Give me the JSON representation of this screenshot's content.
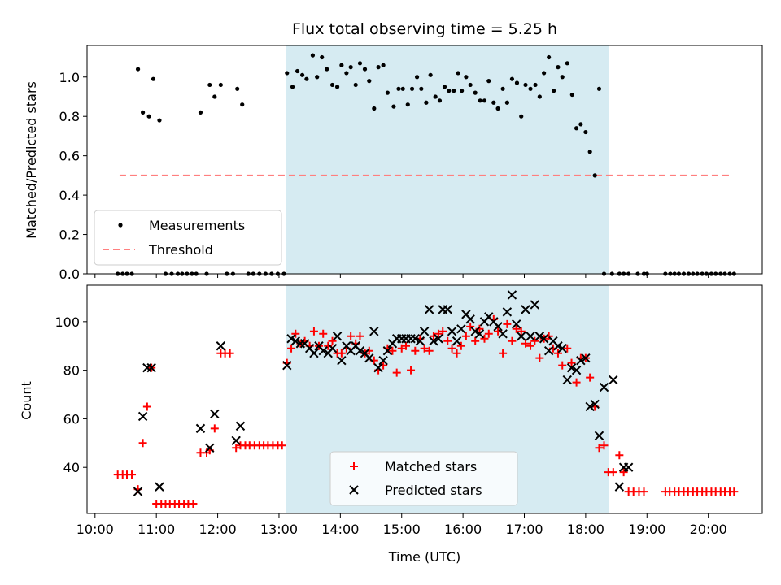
{
  "figure": {
    "title": "Flux total observing time = 5.25 h",
    "xlabel": "Time (UTC)"
  },
  "colors": {
    "shade": "#add8e6",
    "threshold": "#ff7f7f",
    "measurement": "#000000",
    "matched": "#ff0000",
    "predicted": "#000000"
  },
  "chart_data": [
    {
      "type": "scatter",
      "title": "Flux total observing time = 5.25 h",
      "xlabel": "",
      "ylabel": "Matched/Predicted stars",
      "x_unit": "hours UTC",
      "xlim": [
        9.87,
        20.88
      ],
      "ylim": [
        0.0,
        1.16
      ],
      "xticks": [
        10,
        11,
        12,
        13,
        14,
        15,
        16,
        17,
        18,
        19,
        20
      ],
      "yticks": [
        0.0,
        0.2,
        0.4,
        0.6,
        0.8,
        1.0
      ],
      "ytick_labels": [
        "0.0",
        "0.2",
        "0.4",
        "0.6",
        "0.8",
        "1.0"
      ],
      "shaded_span": [
        13.12,
        18.38
      ],
      "threshold": {
        "name": "Threshold",
        "y": 0.5,
        "x_range": [
          10.4,
          20.4
        ]
      },
      "legend": {
        "location": "lower left",
        "entries": [
          "Measurements",
          "Threshold"
        ]
      },
      "series": [
        {
          "name": "Measurements",
          "x": [
            10.37,
            10.45,
            10.52,
            10.6,
            10.7,
            10.78,
            10.88,
            10.95,
            11.05,
            11.15,
            11.25,
            11.35,
            11.42,
            11.5,
            11.58,
            11.65,
            11.72,
            11.82,
            11.87,
            11.95,
            12.05,
            12.15,
            12.25,
            12.32,
            12.4,
            12.5,
            12.58,
            12.68,
            12.78,
            12.88,
            12.98,
            13.08,
            13.13,
            13.22,
            13.3,
            13.38,
            13.45,
            13.55,
            13.62,
            13.7,
            13.78,
            13.87,
            13.95,
            14.02,
            14.1,
            14.17,
            14.25,
            14.32,
            14.4,
            14.47,
            14.55,
            14.62,
            14.7,
            14.77,
            14.87,
            14.95,
            15.02,
            15.1,
            15.17,
            15.25,
            15.32,
            15.4,
            15.47,
            15.55,
            15.62,
            15.7,
            15.77,
            15.85,
            15.92,
            15.98,
            16.05,
            16.12,
            16.2,
            16.28,
            16.35,
            16.42,
            16.5,
            16.57,
            16.65,
            16.72,
            16.8,
            16.88,
            16.95,
            17.02,
            17.1,
            17.18,
            17.25,
            17.32,
            17.4,
            17.48,
            17.55,
            17.62,
            17.7,
            17.78,
            17.85,
            17.92,
            18.0,
            18.07,
            18.15,
            18.22,
            18.3,
            18.43,
            18.55,
            18.62,
            18.7,
            18.85,
            18.95,
            19.0,
            19.3,
            19.38,
            19.45,
            19.52,
            19.6,
            19.68,
            19.75,
            19.82,
            19.9,
            19.97,
            20.05,
            20.12,
            20.2,
            20.27,
            20.35,
            20.42
          ],
          "y": [
            0,
            0,
            0,
            0,
            1.04,
            0.82,
            0.8,
            0.99,
            0.78,
            0,
            0,
            0,
            0,
            0,
            0,
            0,
            0.82,
            0,
            0.96,
            0.9,
            0.96,
            0,
            0,
            0.94,
            0.86,
            0,
            0,
            0,
            0,
            0,
            0,
            0,
            1.02,
            0.95,
            1.03,
            1.01,
            0.99,
            1.11,
            1.0,
            1.1,
            1.04,
            0.96,
            0.95,
            1.06,
            1.02,
            1.05,
            0.96,
            1.07,
            1.04,
            0.98,
            0.84,
            1.05,
            1.06,
            0.92,
            0.85,
            0.94,
            0.94,
            0.86,
            0.94,
            1.0,
            0.94,
            0.87,
            1.01,
            0.9,
            0.88,
            0.95,
            0.93,
            0.93,
            1.02,
            0.93,
            1.0,
            0.96,
            0.92,
            0.88,
            0.88,
            0.98,
            0.87,
            0.84,
            0.94,
            0.87,
            0.99,
            0.97,
            0.8,
            0.96,
            0.94,
            0.96,
            0.9,
            1.02,
            1.1,
            0.93,
            1.05,
            1.0,
            1.07,
            0.91,
            0.74,
            0.76,
            0.72,
            0.62,
            0.5,
            0.94,
            0,
            0,
            0,
            0,
            0,
            0,
            0,
            0,
            0,
            0,
            0,
            0,
            0,
            0,
            0,
            0,
            0,
            0,
            0,
            0,
            0,
            0,
            0,
            0
          ]
        }
      ]
    },
    {
      "type": "scatter",
      "title": "",
      "xlabel": "Time (UTC)",
      "ylabel": "Count",
      "x_unit": "hours UTC",
      "xlim": [
        9.87,
        20.88
      ],
      "ylim": [
        21,
        115
      ],
      "xticks": [
        10,
        11,
        12,
        13,
        14,
        15,
        16,
        17,
        18,
        19,
        20
      ],
      "xtick_labels": [
        "10:00",
        "11:00",
        "12:00",
        "13:00",
        "14:00",
        "15:00",
        "16:00",
        "17:00",
        "18:00",
        "19:00",
        "20:00"
      ],
      "yticks": [
        40,
        60,
        80,
        100
      ],
      "ytick_labels": [
        "40",
        "60",
        "80",
        "100"
      ],
      "shaded_span": [
        13.12,
        18.38
      ],
      "legend": {
        "location": "lower center",
        "entries": [
          "Matched stars",
          "Predicted stars"
        ]
      },
      "series": [
        {
          "name": "Matched stars",
          "x": [
            10.37,
            10.45,
            10.52,
            10.6,
            10.7,
            10.78,
            10.85,
            10.92,
            11.0,
            11.08,
            11.15,
            11.22,
            11.3,
            11.37,
            11.45,
            11.52,
            11.6,
            11.72,
            11.82,
            11.87,
            11.95,
            12.05,
            12.12,
            12.2,
            12.3,
            12.37,
            12.45,
            12.52,
            12.6,
            12.68,
            12.75,
            12.82,
            12.9,
            12.98,
            13.05,
            13.13,
            13.2,
            13.27,
            13.35,
            13.42,
            13.5,
            13.57,
            13.65,
            13.72,
            13.8,
            13.87,
            13.95,
            14.02,
            14.1,
            14.17,
            14.25,
            14.32,
            14.4,
            14.47,
            14.55,
            14.62,
            14.7,
            14.77,
            14.85,
            14.92,
            15.0,
            15.07,
            15.15,
            15.22,
            15.3,
            15.37,
            15.45,
            15.52,
            15.6,
            15.67,
            15.75,
            15.82,
            15.9,
            15.97,
            16.05,
            16.12,
            16.2,
            16.27,
            16.35,
            16.42,
            16.5,
            16.57,
            16.65,
            16.72,
            16.8,
            16.87,
            16.95,
            17.02,
            17.1,
            17.17,
            17.25,
            17.32,
            17.4,
            17.47,
            17.55,
            17.62,
            17.7,
            17.77,
            17.85,
            17.92,
            18.0,
            18.07,
            18.15,
            18.22,
            18.3,
            18.37,
            18.45,
            18.55,
            18.62,
            18.7,
            18.78,
            18.87,
            18.95,
            19.3,
            19.37,
            19.45,
            19.52,
            19.6,
            19.67,
            19.75,
            19.82,
            19.9,
            19.97,
            20.05,
            20.12,
            20.2,
            20.27,
            20.35,
            20.42
          ],
          "y": [
            37,
            37,
            37,
            37,
            31,
            50,
            65,
            81,
            25,
            25,
            25,
            25,
            25,
            25,
            25,
            25,
            25,
            46,
            46,
            47,
            56,
            87,
            87,
            87,
            48,
            49,
            49,
            49,
            49,
            49,
            49,
            49,
            49,
            49,
            49,
            83,
            89,
            95,
            91,
            92,
            90,
            96,
            90,
            95,
            90,
            92,
            87,
            87,
            89,
            94,
            91,
            94,
            87,
            88,
            84,
            80,
            82,
            89,
            88,
            79,
            89,
            90,
            80,
            88,
            93,
            89,
            88,
            94,
            95,
            96,
            92,
            89,
            87,
            90,
            94,
            98,
            92,
            97,
            93,
            95,
            101,
            96,
            87,
            99,
            92,
            97,
            96,
            91,
            90,
            92,
            85,
            93,
            94,
            89,
            87,
            82,
            89,
            83,
            75,
            85,
            85,
            77,
            65,
            48,
            49,
            38,
            38,
            45,
            38,
            30,
            30,
            30,
            30,
            30,
            30,
            30,
            30,
            30,
            30,
            30,
            30,
            30,
            30,
            30,
            30,
            30,
            30,
            30,
            30
          ],
          "marker": "+"
        },
        {
          "name": "Predicted stars",
          "x": [
            10.7,
            10.78,
            10.85,
            10.92,
            11.05,
            11.72,
            11.87,
            11.95,
            12.05,
            12.3,
            12.37,
            13.13,
            13.2,
            13.27,
            13.35,
            13.42,
            13.5,
            13.57,
            13.65,
            13.72,
            13.8,
            13.87,
            13.95,
            14.02,
            14.1,
            14.17,
            14.25,
            14.32,
            14.4,
            14.47,
            14.55,
            14.62,
            14.7,
            14.77,
            14.85,
            14.92,
            15.0,
            15.07,
            15.15,
            15.22,
            15.3,
            15.37,
            15.45,
            15.52,
            15.6,
            15.67,
            15.75,
            15.82,
            15.9,
            15.97,
            16.05,
            16.12,
            16.2,
            16.27,
            16.35,
            16.42,
            16.5,
            16.57,
            16.65,
            16.72,
            16.8,
            16.87,
            16.95,
            17.02,
            17.1,
            17.17,
            17.25,
            17.32,
            17.4,
            17.47,
            17.55,
            17.62,
            17.7,
            17.77,
            17.85,
            17.92,
            18.0,
            18.07,
            18.15,
            18.22,
            18.3,
            18.45,
            18.55,
            18.62,
            18.7
          ],
          "y": [
            30,
            61,
            81,
            81,
            32,
            56,
            48,
            62,
            90,
            51,
            57,
            82,
            93,
            92,
            91,
            91,
            89,
            87,
            90,
            88,
            87,
            89,
            94,
            84,
            90,
            88,
            90,
            88,
            87,
            85,
            96,
            81,
            84,
            88,
            91,
            93,
            93,
            93,
            93,
            93,
            92,
            96,
            105,
            92,
            93,
            105,
            105,
            96,
            92,
            97,
            103,
            101,
            96,
            95,
            100,
            102,
            100,
            98,
            95,
            104,
            111,
            99,
            94,
            105,
            94,
            107,
            94,
            93,
            88,
            92,
            90,
            89,
            76,
            81,
            80,
            84,
            85,
            65,
            66,
            53,
            73,
            76,
            32,
            40,
            40
          ],
          "marker": "x"
        }
      ]
    }
  ]
}
